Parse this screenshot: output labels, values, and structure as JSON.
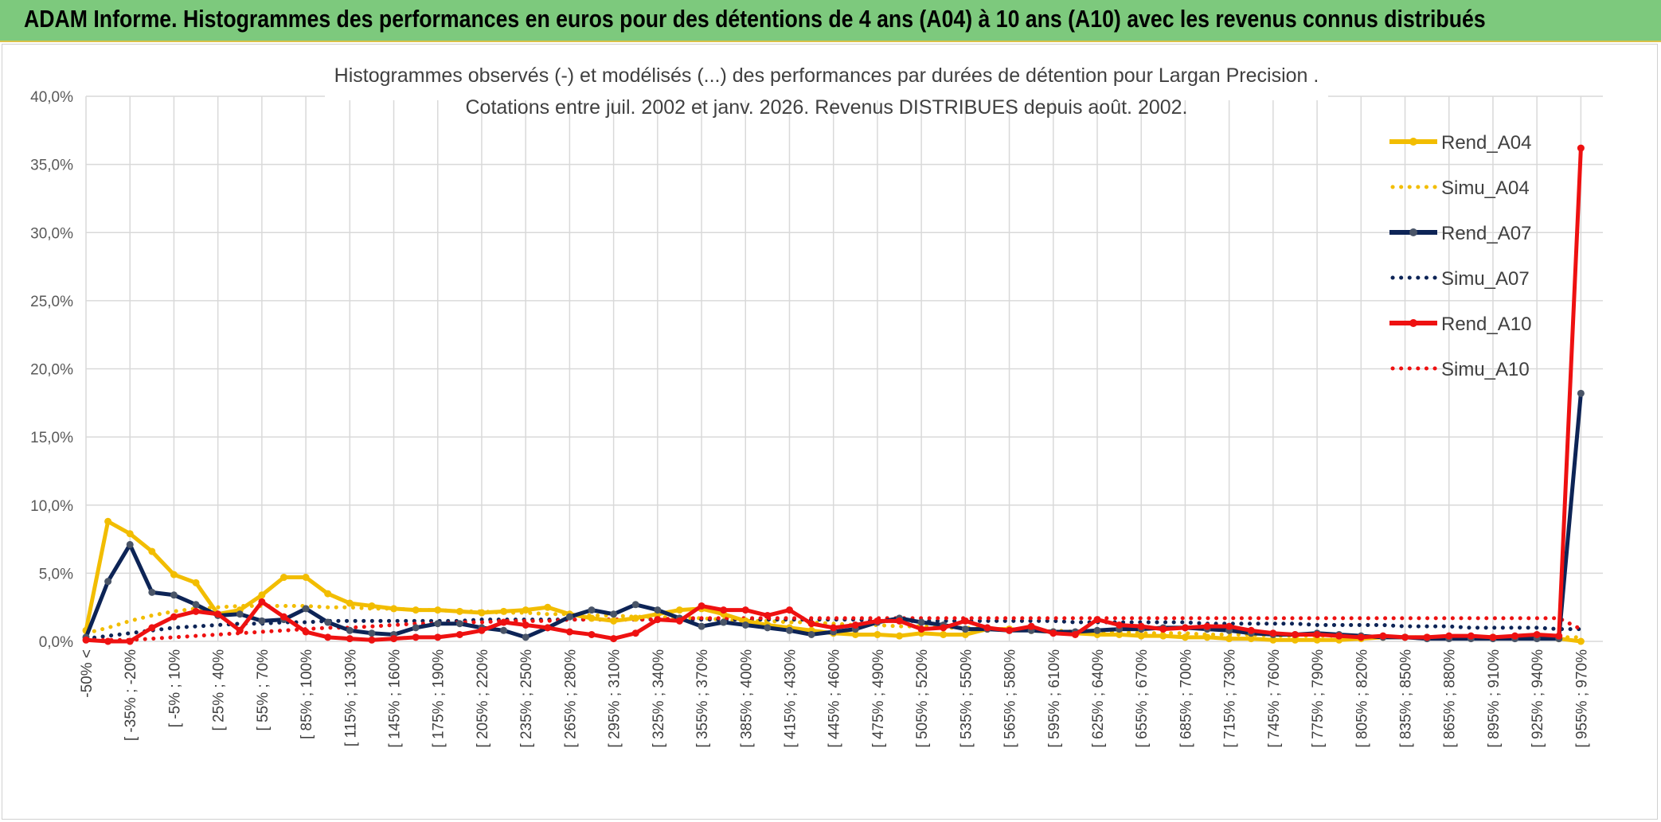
{
  "banner": {
    "title": "ADAM Informe. Histogrammes des performances en euros pour des détentions de 4 ans (A04) à 10 ans (A10) avec les revenus connus distribués"
  },
  "chart_data": {
    "type": "line",
    "title_line1": "Histogrammes observés (-) et modélisés (...) des performances par durées de détention pour Largan Precision .",
    "title_line2": "Cotations entre juil. 2002 et janv. 2026. Revenus DISTRIBUES depuis août. 2002.",
    "ylim": [
      0,
      40
    ],
    "ytick_labels": [
      "0,0%",
      "5,0%",
      "10,0%",
      "15,0%",
      "20,0%",
      "25,0%",
      "30,0%",
      "35,0%",
      "40,0%"
    ],
    "xtick_labels": [
      "-50% <",
      "[ -35% ; -20%",
      "[ -5% ; 10%",
      "[ 25% ; 40%",
      "[ 55% ; 70%",
      "[ 85% ; 100%",
      "[ 115% ; 130%",
      "[ 145% ; 160%",
      "[ 175% ; 190%",
      "[ 205% ; 220%",
      "[ 235% ; 250%",
      "[ 265% ; 280%",
      "[ 295% ; 310%",
      "[ 325% ; 340%",
      "[ 355% ; 370%",
      "[ 385% ; 400%",
      "[ 415% ; 430%",
      "[ 445% ; 460%",
      "[ 475% ; 490%",
      "[ 505% ; 520%",
      "[ 535% ; 550%",
      "[ 565% ; 580%",
      "[ 595% ; 610%",
      "[ 625% ; 640%",
      "[ 655% ; 670%",
      "[ 685% ; 700%",
      "[ 715% ; 730%",
      "[ 745% ; 760%",
      "[ 775% ; 790%",
      "[ 805% ; 820%",
      "[ 835% ; 850%",
      "[ 865% ; 880%",
      "[ 895% ; 910%",
      "[ 925% ; 940%",
      "[ 955% ; 970%"
    ],
    "n_points": 69,
    "series": [
      {
        "name": "Rend_A04",
        "color": "#f2bd00",
        "style": "solid",
        "values": [
          0.8,
          8.8,
          7.9,
          6.6,
          4.9,
          4.3,
          2.0,
          2.3,
          3.4,
          4.7,
          4.7,
          3.5,
          2.8,
          2.6,
          2.4,
          2.3,
          2.3,
          2.2,
          2.1,
          2.2,
          2.3,
          2.5,
          2.0,
          1.7,
          1.5,
          1.7,
          2.0,
          2.3,
          2.4,
          2.0,
          1.5,
          1.2,
          1.0,
          0.8,
          0.6,
          0.5,
          0.5,
          0.4,
          0.6,
          0.5,
          0.5,
          0.9,
          0.9,
          0.8,
          0.7,
          0.6,
          0.5,
          0.5,
          0.4,
          0.4,
          0.3,
          0.3,
          0.2,
          0.2,
          0.1,
          0.1,
          0.1,
          0.1,
          0.2,
          0.3,
          0.3,
          0.3,
          0.3,
          0.3,
          0.3,
          0.3,
          0.3,
          0.2,
          0.0
        ]
      },
      {
        "name": "Simu_A04",
        "color": "#f2bd00",
        "style": "dotted",
        "values": [
          0.6,
          1.0,
          1.5,
          1.9,
          2.2,
          2.4,
          2.5,
          2.6,
          2.6,
          2.6,
          2.6,
          2.5,
          2.5,
          2.4,
          2.4,
          2.3,
          2.3,
          2.2,
          2.2,
          2.1,
          2.1,
          2.0,
          2.0,
          1.9,
          1.9,
          1.8,
          1.8,
          1.7,
          1.7,
          1.6,
          1.5,
          1.5,
          1.4,
          1.4,
          1.3,
          1.2,
          1.2,
          1.1,
          1.1,
          1.0,
          1.0,
          0.9,
          0.9,
          0.8,
          0.8,
          0.7,
          0.7,
          0.7,
          0.6,
          0.6,
          0.6,
          0.5,
          0.5,
          0.5,
          0.4,
          0.4,
          0.4,
          0.4,
          0.4,
          0.3,
          0.3,
          0.3,
          0.3,
          0.3,
          0.3,
          0.3,
          0.3,
          0.3,
          0.3
        ]
      },
      {
        "name": "Rend_A07",
        "color": "#0d2456",
        "style": "solid",
        "values": [
          0.3,
          4.4,
          7.1,
          3.6,
          3.4,
          2.7,
          1.9,
          2.0,
          1.5,
          1.6,
          2.4,
          1.4,
          0.8,
          0.6,
          0.5,
          1.0,
          1.3,
          1.3,
          1.0,
          0.8,
          0.3,
          1.0,
          1.8,
          2.3,
          2.0,
          2.7,
          2.3,
          1.7,
          1.1,
          1.4,
          1.2,
          1.0,
          0.8,
          0.5,
          0.7,
          0.9,
          1.4,
          1.7,
          1.4,
          1.2,
          0.9,
          0.9,
          0.8,
          0.8,
          0.7,
          0.7,
          0.8,
          0.9,
          0.9,
          1.0,
          1.0,
          0.9,
          0.8,
          0.6,
          0.5,
          0.5,
          0.6,
          0.5,
          0.4,
          0.3,
          0.3,
          0.2,
          0.2,
          0.2,
          0.2,
          0.2,
          0.2,
          0.2,
          18.2
        ]
      },
      {
        "name": "Simu_A07",
        "color": "#0d2456",
        "style": "dotted",
        "values": [
          0.2,
          0.4,
          0.6,
          0.8,
          1.0,
          1.1,
          1.2,
          1.3,
          1.3,
          1.4,
          1.4,
          1.5,
          1.5,
          1.5,
          1.5,
          1.5,
          1.5,
          1.5,
          1.6,
          1.6,
          1.6,
          1.6,
          1.6,
          1.6,
          1.6,
          1.6,
          1.6,
          1.6,
          1.6,
          1.6,
          1.6,
          1.6,
          1.6,
          1.6,
          1.6,
          1.6,
          1.5,
          1.5,
          1.5,
          1.5,
          1.5,
          1.5,
          1.5,
          1.5,
          1.5,
          1.4,
          1.4,
          1.4,
          1.4,
          1.4,
          1.4,
          1.3,
          1.3,
          1.3,
          1.3,
          1.3,
          1.2,
          1.2,
          1.2,
          1.2,
          1.1,
          1.1,
          1.1,
          1.0,
          1.0,
          1.0,
          1.0,
          0.9,
          0.9
        ]
      },
      {
        "name": "Rend_A10",
        "color": "#ee1111",
        "style": "solid",
        "values": [
          0.1,
          0.0,
          0.0,
          1.0,
          1.8,
          2.2,
          2.0,
          0.8,
          2.9,
          1.8,
          0.7,
          0.3,
          0.2,
          0.1,
          0.2,
          0.3,
          0.3,
          0.5,
          0.8,
          1.4,
          1.2,
          1.0,
          0.7,
          0.5,
          0.2,
          0.6,
          1.6,
          1.5,
          2.6,
          2.3,
          2.3,
          1.9,
          2.3,
          1.3,
          1.0,
          1.2,
          1.5,
          1.5,
          0.9,
          1.0,
          1.5,
          1.0,
          0.8,
          1.1,
          0.6,
          0.5,
          1.6,
          1.2,
          1.1,
          0.9,
          1.0,
          1.1,
          1.1,
          0.8,
          0.6,
          0.5,
          0.5,
          0.4,
          0.3,
          0.4,
          0.3,
          0.3,
          0.4,
          0.4,
          0.3,
          0.4,
          0.5,
          0.4,
          36.2
        ]
      },
      {
        "name": "Simu_A10",
        "color": "#ee1111",
        "style": "dotted",
        "values": [
          0.1,
          0.1,
          0.1,
          0.2,
          0.3,
          0.4,
          0.5,
          0.6,
          0.7,
          0.8,
          0.9,
          1.0,
          1.0,
          1.1,
          1.2,
          1.3,
          1.3,
          1.4,
          1.4,
          1.5,
          1.5,
          1.5,
          1.6,
          1.6,
          1.6,
          1.6,
          1.6,
          1.7,
          1.7,
          1.7,
          1.7,
          1.7,
          1.7,
          1.7,
          1.7,
          1.7,
          1.7,
          1.7,
          1.7,
          1.7,
          1.7,
          1.7,
          1.7,
          1.7,
          1.7,
          1.7,
          1.7,
          1.7,
          1.7,
          1.7,
          1.7,
          1.7,
          1.7,
          1.7,
          1.7,
          1.7,
          1.7,
          1.7,
          1.7,
          1.7,
          1.7,
          1.7,
          1.7,
          1.7,
          1.7,
          1.7,
          1.7,
          1.7,
          0.9
        ]
      }
    ]
  }
}
